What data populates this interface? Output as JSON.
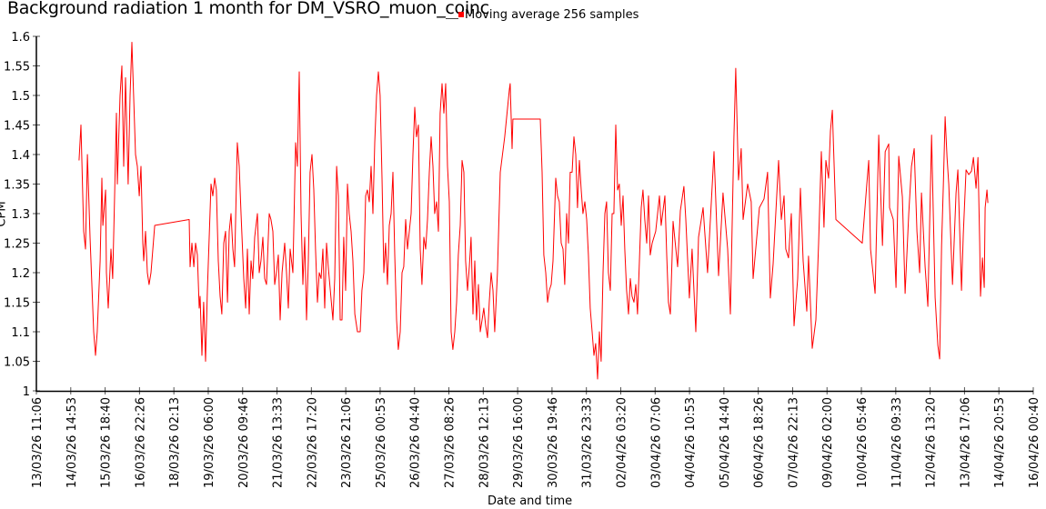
{
  "chart_data": {
    "type": "line",
    "title": "Background radiation 1 month for DM_VSRO_muon_coinc",
    "xlabel": "Date and time",
    "ylabel": "CPM",
    "x_units": "hours since 13/03/26 11:06",
    "xlim": [
      0,
      805.6
    ],
    "ylim": [
      1,
      1.6
    ],
    "grid": false,
    "legend_position": "top-center",
    "color": "#ff0000",
    "yticks": [
      1,
      1.05,
      1.1,
      1.15,
      1.2,
      1.25,
      1.3,
      1.35,
      1.4,
      1.45,
      1.5,
      1.55,
      1.6
    ],
    "ytick_labels": [
      "1",
      "1.05",
      "1.1",
      "1.15",
      "1.2",
      "1.25",
      "1.3",
      "1.35",
      "1.4",
      "1.45",
      "1.5",
      "1.55",
      "1.6"
    ],
    "xtick_labels": [
      "13/03/26 11:06",
      "14/03/26 14:53",
      "15/03/26 18:40",
      "16/03/26 22:26",
      "18/03/26 02:13",
      "19/03/26 06:00",
      "20/03/26 09:46",
      "21/03/26 13:33",
      "22/03/26 17:20",
      "23/03/26 21:06",
      "25/03/26 00:53",
      "26/03/26 04:40",
      "27/03/26 08:26",
      "28/03/26 12:13",
      "29/03/26 16:00",
      "30/03/26 19:46",
      "31/03/26 23:33",
      "02/04/26 03:20",
      "03/04/26 07:06",
      "04/04/26 10:53",
      "05/04/26 14:40",
      "06/04/26 18:26",
      "07/04/26 22:13",
      "09/04/26 02:00",
      "10/04/26 05:46",
      "11/04/26 09:33",
      "12/04/26 13:20",
      "13/04/26 17:06",
      "14/04/26 20:53",
      "16/04/26 00:40"
    ],
    "series": [
      {
        "name": "Moving average 256 samples",
        "x": [
          34.5,
          36.0,
          38.2,
          39.7,
          41.2,
          43.4,
          46.3,
          47.8,
          49.2,
          51.5,
          52.9,
          53.7,
          55.9,
          56.6,
          58.1,
          60.3,
          61.7,
          63.2,
          64.7,
          65.4,
          67.6,
          69.1,
          70.6,
          72.0,
          74.2,
          75.7,
          77.2,
          78.6,
          80.1,
          81.6,
          83.1,
          84.5,
          86.0,
          86.7,
          88.2,
          89.7,
          91.1,
          92.6,
          95.6,
          123.5,
          124.2,
          125.7,
          127.2,
          128.6,
          130.1,
          131.6,
          132.3,
          133.8,
          135.2,
          136.7,
          138.2,
          141.1,
          142.6,
          144.1,
          145.5,
          147.0,
          148.5,
          149.9,
          151.4,
          152.9,
          154.4,
          155.8,
          157.3,
          158.8,
          160.2,
          162.4,
          163.9,
          165.4,
          167.6,
          169.1,
          170.5,
          172.0,
          173.5,
          174.9,
          176.4,
          178.6,
          180.1,
          181.5,
          183.0,
          184.5,
          186.0,
          188.2,
          189.6,
          191.1,
          192.6,
          194.0,
          195.5,
          197.0,
          198.5,
          200.7,
          202.1,
          203.6,
          205.1,
          207.3,
          209.5,
          210.9,
          212.4,
          213.9,
          215.4,
          216.8,
          218.3,
          219.8,
          221.2,
          222.7,
          224.2,
          225.6,
          227.1,
          228.6,
          230.1,
          231.5,
          233.0,
          234.5,
          235.9,
          239.6,
          241.1,
          242.6,
          244.0,
          245.5,
          247.0,
          248.4,
          249.9,
          251.4,
          252.8,
          254.3,
          255.8,
          257.3,
          259.5,
          261.7,
          263.1,
          264.6,
          266.1,
          267.5,
          269.0,
          270.5,
          272.0,
          273.4,
          274.9,
          276.4,
          277.8,
          279.3,
          280.8,
          282.2,
          283.7,
          285.2,
          286.7,
          288.1,
          289.6,
          291.1,
          292.5,
          294.0,
          295.5,
          296.9,
          298.4,
          299.9,
          301.4,
          302.8,
          304.3,
          305.8,
          307.2,
          308.7,
          310.2,
          311.6,
          313.1,
          314.6,
          316.1,
          317.5,
          319.0,
          320.5,
          321.9,
          323.4,
          324.9,
          326.3,
          327.8,
          329.3,
          330.8,
          332.2,
          333.7,
          335.2,
          336.6,
          338.1,
          339.6,
          341.0,
          342.5,
          344.0,
          345.5,
          346.9,
          348.4,
          349.9,
          351.3,
          352.8,
          354.3,
          355.7,
          357.2,
          358.7,
          360.2,
          361.6,
          363.1,
          364.6,
          366.0,
          367.5,
          369.0,
          370.4,
          372.6,
          374.9,
          378.5,
          382.2,
          382.9,
          384.4,
          385.1,
          407.2,
          408.7,
          410.1,
          411.6,
          413.1,
          414.5,
          416.0,
          417.5,
          419.7,
          421.2,
          422.6,
          424.1,
          425.6,
          427.0,
          428.5,
          430.0,
          431.4,
          432.9,
          434.4,
          435.9,
          437.3,
          438.8,
          440.3,
          441.7,
          443.2,
          444.7,
          446.1,
          447.6,
          449.1,
          450.6,
          452.0,
          453.5,
          455.0,
          456.4,
          457.9,
          459.4,
          460.8,
          462.3,
          463.8,
          465.3,
          466.7,
          468.2,
          469.7,
          471.1,
          472.6,
          474.1,
          475.5,
          477.0,
          478.5,
          480.0,
          481.4,
          482.9,
          484.4,
          485.8,
          487.3,
          488.8,
          490.2,
          491.7,
          493.2,
          494.7,
          496.1,
          497.6,
          500.5,
          503.5,
          504.9,
          507.9,
          509.4,
          510.8,
          512.3,
          513.8,
          514.5,
          518.2,
          520.4,
          523.3,
          524.8,
          527.7,
          529.9,
          532.9,
          535.1,
          538.8,
          542.4,
          547.6,
          551.3,
          554.9,
          558.6,
          560.8,
          563.7,
          565.2,
          567.4,
          569.6,
          571.1,
          574.8,
          577.7,
          579.2,
          584.3,
          588.0,
          590.9,
          593.1,
          595.4,
          599.8,
          602.0,
          604.2,
          605.6,
          607.8,
          610.1,
          612.3,
          615.2,
          617.4,
          619.6,
          622.6,
          624.0,
          627.0,
          629.9,
          632.1,
          634.3,
          636.5,
          638.0,
          640.2,
          641.7,
          643.2,
          646.1,
          667.4,
          668.9,
          671.1,
          672.6,
          674.1,
          677.8,
          680.7,
          683.7,
          685.9,
          688.8,
          689.5,
          692.5,
          694.7,
          696.9,
          699.8,
          702.0,
          705.0,
          707.2,
          709.4,
          711.6,
          713.8,
          715.3,
          718.2,
          720.4,
          723.4,
          726.3,
          728.5,
          730.0,
          731.5,
          732.9,
          734.4,
          735.9,
          737.3,
          740.3,
          743.2,
          744.7,
          747.6,
          749.1,
          751.3,
          753.5,
          755.7,
          757.2,
          759.4,
          760.9,
          762.3,
          763.0,
          764.5,
          766.0,
          766.7,
          768.2,
          768.9
        ],
        "y": [
          1.39,
          1.45,
          1.27,
          1.24,
          1.4,
          1.26,
          1.1,
          1.06,
          1.1,
          1.22,
          1.36,
          1.28,
          1.34,
          1.2,
          1.14,
          1.24,
          1.19,
          1.33,
          1.47,
          1.35,
          1.5,
          1.55,
          1.38,
          1.53,
          1.35,
          1.5,
          1.59,
          1.5,
          1.4,
          1.38,
          1.33,
          1.38,
          1.25,
          1.22,
          1.27,
          1.2,
          1.18,
          1.2,
          1.28,
          1.29,
          1.21,
          1.25,
          1.21,
          1.25,
          1.23,
          1.14,
          1.16,
          1.06,
          1.15,
          1.05,
          1.17,
          1.35,
          1.33,
          1.36,
          1.34,
          1.22,
          1.16,
          1.13,
          1.25,
          1.27,
          1.15,
          1.27,
          1.3,
          1.24,
          1.21,
          1.42,
          1.38,
          1.3,
          1.19,
          1.14,
          1.24,
          1.13,
          1.22,
          1.19,
          1.26,
          1.3,
          1.2,
          1.22,
          1.26,
          1.19,
          1.18,
          1.3,
          1.29,
          1.27,
          1.18,
          1.2,
          1.23,
          1.12,
          1.2,
          1.25,
          1.2,
          1.14,
          1.24,
          1.2,
          1.42,
          1.38,
          1.54,
          1.3,
          1.18,
          1.26,
          1.12,
          1.22,
          1.37,
          1.4,
          1.34,
          1.24,
          1.15,
          1.2,
          1.19,
          1.24,
          1.14,
          1.25,
          1.21,
          1.12,
          1.19,
          1.38,
          1.33,
          1.12,
          1.12,
          1.26,
          1.17,
          1.35,
          1.3,
          1.27,
          1.22,
          1.13,
          1.1,
          1.1,
          1.17,
          1.2,
          1.33,
          1.34,
          1.32,
          1.38,
          1.3,
          1.42,
          1.5,
          1.54,
          1.5,
          1.36,
          1.2,
          1.25,
          1.18,
          1.28,
          1.3,
          1.37,
          1.23,
          1.12,
          1.07,
          1.1,
          1.2,
          1.21,
          1.29,
          1.24,
          1.27,
          1.3,
          1.4,
          1.48,
          1.43,
          1.45,
          1.24,
          1.18,
          1.26,
          1.24,
          1.29,
          1.37,
          1.43,
          1.38,
          1.3,
          1.32,
          1.27,
          1.47,
          1.52,
          1.47,
          1.52,
          1.38,
          1.32,
          1.1,
          1.07,
          1.1,
          1.15,
          1.23,
          1.28,
          1.39,
          1.37,
          1.22,
          1.17,
          1.21,
          1.26,
          1.13,
          1.22,
          1.12,
          1.18,
          1.1,
          1.12,
          1.14,
          1.11,
          1.09,
          1.15,
          1.2,
          1.17,
          1.1,
          1.2,
          1.37,
          1.43,
          1.51,
          1.52,
          1.41,
          1.46,
          1.46,
          1.37,
          1.23,
          1.2,
          1.15,
          1.17,
          1.18,
          1.22,
          1.36,
          1.33,
          1.32,
          1.25,
          1.24,
          1.18,
          1.3,
          1.25,
          1.37,
          1.37,
          1.43,
          1.4,
          1.31,
          1.39,
          1.34,
          1.3,
          1.32,
          1.29,
          1.23,
          1.14,
          1.1,
          1.06,
          1.08,
          1.02,
          1.1,
          1.05,
          1.2,
          1.3,
          1.32,
          1.2,
          1.17,
          1.3,
          1.3,
          1.45,
          1.34,
          1.35,
          1.28,
          1.33,
          1.24,
          1.17,
          1.13,
          1.19,
          1.16,
          1.15,
          1.18,
          1.13,
          1.22,
          1.31,
          1.34,
          1.29,
          1.25,
          1.33,
          1.23,
          1.25,
          1.27,
          1.33,
          1.28,
          1.33,
          1.23,
          1.15,
          1.13,
          1.23,
          1.287,
          1.21,
          1.305,
          1.346,
          1.29,
          1.157,
          1.24,
          1.1,
          1.26,
          1.31,
          1.2,
          1.405,
          1.195,
          1.335,
          1.24,
          1.13,
          1.43,
          1.546,
          1.357,
          1.41,
          1.29,
          1.35,
          1.32,
          1.19,
          1.31,
          1.325,
          1.37,
          1.157,
          1.215,
          1.39,
          1.29,
          1.33,
          1.24,
          1.225,
          1.3,
          1.11,
          1.19,
          1.343,
          1.22,
          1.135,
          1.228,
          1.072,
          1.12,
          1.25,
          1.405,
          1.277,
          1.39,
          1.36,
          1.44,
          1.475,
          1.29,
          1.25,
          1.29,
          1.35,
          1.39,
          1.24,
          1.165,
          1.433,
          1.246,
          1.405,
          1.418,
          1.31,
          1.29,
          1.175,
          1.397,
          1.328,
          1.165,
          1.3,
          1.38,
          1.41,
          1.27,
          1.2,
          1.335,
          1.21,
          1.143,
          1.433,
          1.158,
          1.077,
          1.054,
          1.246,
          1.346,
          1.464,
          1.395,
          1.35,
          1.18,
          1.335,
          1.374,
          1.17,
          1.266,
          1.374,
          1.366,
          1.372,
          1.395,
          1.343,
          1.395,
          1.25,
          1.16,
          1.225,
          1.175,
          1.31,
          1.34,
          1.318
        ]
      }
    ]
  }
}
